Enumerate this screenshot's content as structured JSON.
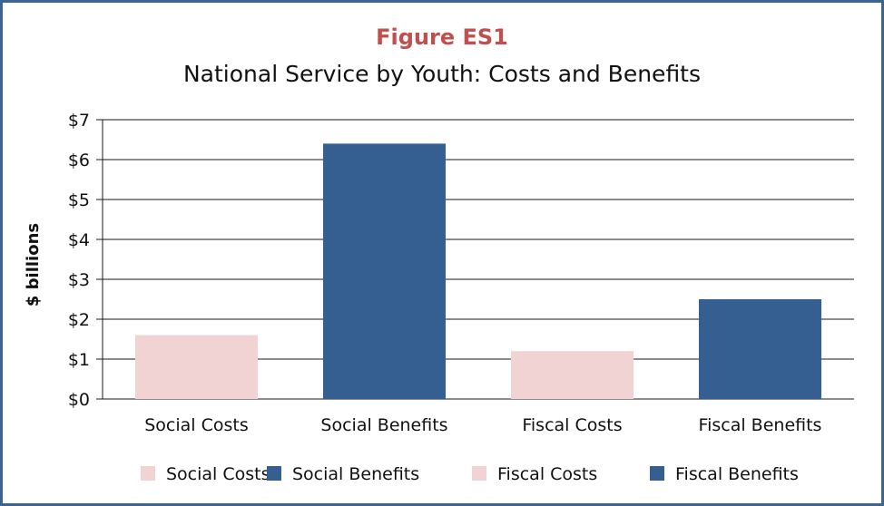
{
  "figure_label": "Figure ES1",
  "chart_data": {
    "type": "bar",
    "title": "National Service by Youth: Costs and Benefits",
    "ylabel": "$ billions",
    "xlabel": "",
    "ylim": [
      0,
      7
    ],
    "yticks": [
      "$0",
      "$1",
      "$2",
      "$3",
      "$4",
      "$5",
      "$6",
      "$7"
    ],
    "grid": true,
    "legend_position": "bottom",
    "categories": [
      "Social Costs",
      "Social Benefits",
      "Fiscal Costs",
      "Fiscal Benefits"
    ],
    "values": [
      1.6,
      6.4,
      1.2,
      2.5
    ],
    "colors": [
      "#f2d3d3",
      "#355f91",
      "#f2d3d3",
      "#355f91"
    ],
    "legend": [
      "Social Costs",
      "Social Benefits",
      "Fiscal Costs",
      "Fiscal Benefits"
    ]
  },
  "colors": {
    "frame": "#3a6396",
    "figure_label": "#c0504d"
  }
}
